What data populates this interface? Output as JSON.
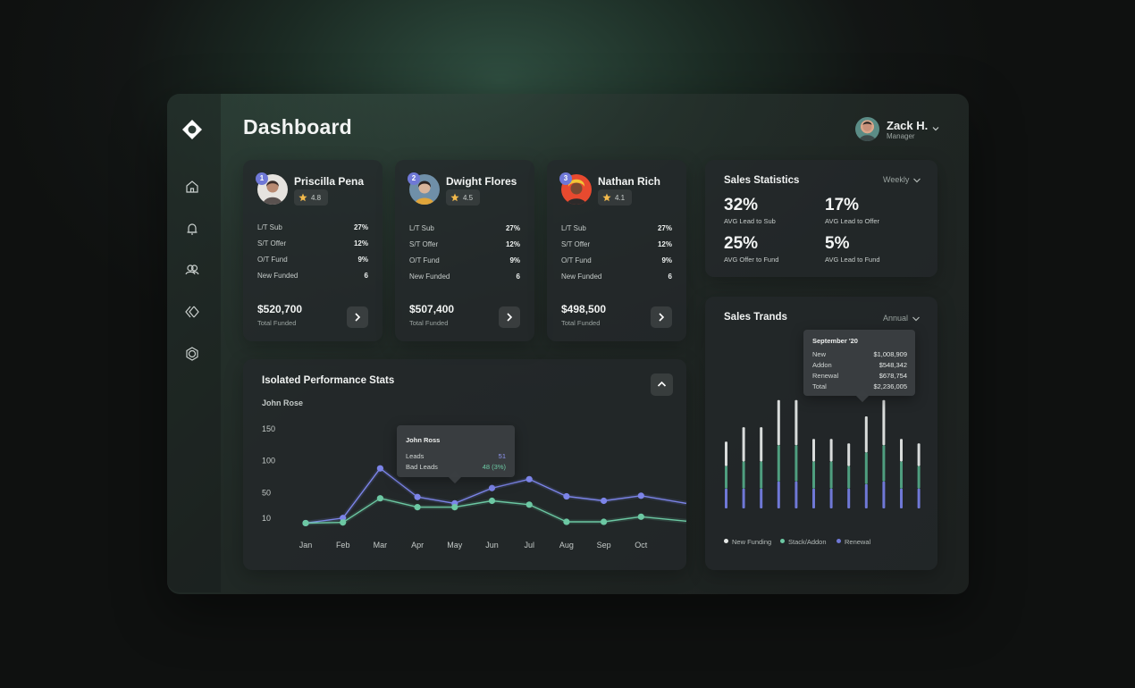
{
  "page": {
    "title": "Dashboard"
  },
  "user": {
    "name": "Zack H.",
    "role": "Manager"
  },
  "nav": {
    "items": [
      "home-icon",
      "bell-icon",
      "users-icon",
      "chevrons-icon",
      "settings-icon"
    ]
  },
  "reps": [
    {
      "rank": "1",
      "name": "Priscilla Pena",
      "rating": "4.8",
      "stats": [
        {
          "label": "L/T Sub",
          "value": "27%"
        },
        {
          "label": "S/T Offer",
          "value": "12%"
        },
        {
          "label": "O/T Fund",
          "value": "9%"
        },
        {
          "label": "New Funded",
          "value": "6"
        }
      ],
      "amount": "$520,700",
      "amount_label": "Total Funded"
    },
    {
      "rank": "2",
      "name": "Dwight Flores",
      "rating": "4.5",
      "stats": [
        {
          "label": "L/T Sub",
          "value": "27%"
        },
        {
          "label": "S/T Offer",
          "value": "12%"
        },
        {
          "label": "O/T Fund",
          "value": "9%"
        },
        {
          "label": "New Funded",
          "value": "6"
        }
      ],
      "amount": "$507,400",
      "amount_label": "Total Funded"
    },
    {
      "rank": "3",
      "name": "Nathan Rich",
      "rating": "4.1",
      "stats": [
        {
          "label": "L/T Sub",
          "value": "27%"
        },
        {
          "label": "S/T Offer",
          "value": "12%"
        },
        {
          "label": "O/T Fund",
          "value": "9%"
        },
        {
          "label": "New Funded",
          "value": "6"
        }
      ],
      "amount": "$498,500",
      "amount_label": "Total Funded"
    }
  ],
  "sales_statistics": {
    "title": "Sales Statistics",
    "period": "Weekly",
    "metrics": [
      {
        "value": "32%",
        "label": "AVG Lead to Sub"
      },
      {
        "value": "17%",
        "label": "AVG Lead to Offer"
      },
      {
        "value": "25%",
        "label": "AVG Offer to Fund"
      },
      {
        "value": "5%",
        "label": "AVG Lead to Fund"
      }
    ]
  },
  "performance": {
    "title": "Isolated Performance Stats",
    "subtitle": "John Rose",
    "tooltip": {
      "name": "John Ross",
      "leads_label": "Leads",
      "leads_value": "51",
      "bad_label": "Bad Leads",
      "bad_value": "48 (3%)"
    }
  },
  "sales_trends": {
    "title": "Sales Trands",
    "period": "Annual",
    "tooltip": {
      "title": "September '20",
      "rows": [
        {
          "label": "New",
          "value": "$1,008,909"
        },
        {
          "label": "Addon",
          "value": "$548,342"
        },
        {
          "label": "Renewal",
          "value": "$678,754"
        },
        {
          "label": "Total",
          "value": "$2,236,005"
        }
      ]
    },
    "legend": [
      "New Funding",
      "Stack/Addon",
      "Renewal"
    ]
  },
  "chart_data": [
    {
      "type": "line",
      "title": "Isolated Performance Stats",
      "categories": [
        "Jan",
        "Feb",
        "Mar",
        "Apr",
        "May",
        "Jun",
        "Jul",
        "Aug",
        "Sep",
        "Oct"
      ],
      "yticks": [
        150,
        100,
        50,
        10
      ],
      "ylim": [
        -10,
        150
      ],
      "series": [
        {
          "name": "Leads",
          "color": "#7c84e8",
          "values": [
            2,
            10,
            88,
            43,
            33,
            57,
            71,
            44,
            37,
            45
          ],
          "trailing": 33
        },
        {
          "name": "Bad Leads",
          "color": "#6cc8a3",
          "values": [
            2,
            3,
            41,
            27,
            27,
            37,
            31,
            4,
            4,
            12
          ],
          "trailing": 5
        }
      ]
    },
    {
      "type": "bar",
      "title": "Sales Trands",
      "stacked": true,
      "bars": 12,
      "series": [
        {
          "name": "Renewal",
          "color": "#6f78d6",
          "values": [
            22,
            22,
            22,
            30,
            30,
            22,
            22,
            22,
            27,
            30,
            22,
            22
          ]
        },
        {
          "name": "Stack/Addon",
          "color": "#4f9e7f",
          "values": [
            25,
            30,
            30,
            40,
            40,
            30,
            30,
            25,
            35,
            40,
            30,
            25
          ]
        },
        {
          "name": "New Funding",
          "color": "#d9dcdb",
          "values": [
            27,
            38,
            38,
            50,
            50,
            25,
            25,
            25,
            40,
            50,
            25,
            25
          ]
        }
      ]
    }
  ]
}
